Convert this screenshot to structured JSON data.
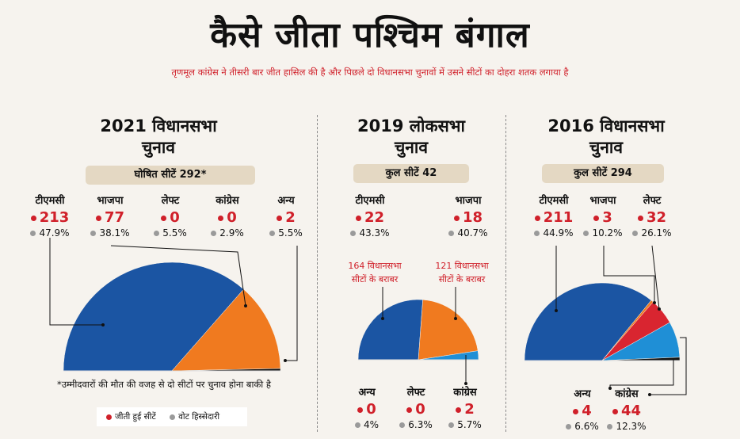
{
  "title": "कैसे जीता पश्चिम बंगाल",
  "subtitle": "तृणमूल कांग्रेस ने तीसरी बार जीत हासिल की है और पिछले दो विधानसभा चुनावों में उसने सीटों का दोहरा शतक लगाया है",
  "colors": {
    "tmc": "#1b55a3",
    "bjp": "#f07a1f",
    "left": "#d92530",
    "congress": "#1f8fd6",
    "others": "#111111"
  },
  "footnote": "*उम्मीदवारों की मौत की वजह से दो सीटों पर चुनाव होना बाकी है",
  "legend": {
    "won": "जीती हुई सीटें",
    "vote": "वोट हिस्सेदारी"
  },
  "panels": [
    {
      "title_line1": "2021 विधानसभा",
      "title_line2": "चुनाव",
      "pill": "घोषित सीटें 292*",
      "parties": [
        {
          "name": "टीएमसी",
          "seats": "213",
          "vote": "47.9%"
        },
        {
          "name": "भाजपा",
          "seats": "77",
          "vote": "38.1%"
        },
        {
          "name": "लेफ्ट",
          "seats": "0",
          "vote": "5.5%"
        },
        {
          "name": "कांग्रेस",
          "seats": "0",
          "vote": "2.9%"
        },
        {
          "name": "अन्य",
          "seats": "2",
          "vote": "5.5%"
        }
      ]
    },
    {
      "title_line1": "2019 लोकसभा",
      "title_line2": "चुनाव",
      "pill": "कुल सीटें 42",
      "parties": [
        {
          "name": "टीएमसी",
          "seats": "22",
          "vote": "43.3%"
        },
        {
          "name": "भाजपा",
          "seats": "18",
          "vote": "40.7%"
        },
        {
          "name": "अन्य",
          "seats": "0",
          "vote": "4%"
        },
        {
          "name": "लेफ्ट",
          "seats": "0",
          "vote": "6.3%"
        },
        {
          "name": "कांग्रेस",
          "seats": "2",
          "vote": "5.7%"
        }
      ],
      "note_tmc": [
        "164 विधानसभा",
        "सीटों के बराबर"
      ],
      "note_bjp": [
        "121 विधानसभा",
        "सीटों के बराबर"
      ]
    },
    {
      "title_line1": "2016 विधानसभा",
      "title_line2": "चुनाव",
      "pill": "कुल सीटें 294",
      "parties": [
        {
          "name": "टीएमसी",
          "seats": "211",
          "vote": "44.9%"
        },
        {
          "name": "भाजपा",
          "seats": "3",
          "vote": "10.2%"
        },
        {
          "name": "लेफ्ट",
          "seats": "32",
          "vote": "26.1%"
        },
        {
          "name": "अन्य",
          "seats": "4",
          "vote": "6.6%"
        },
        {
          "name": "कांग्रेस",
          "seats": "44",
          "vote": "12.3%"
        }
      ]
    }
  ],
  "chart_data": [
    {
      "type": "pie",
      "shape": "semicircle",
      "categories": [
        "टीएमसी",
        "भाजपा",
        "लेफ्ट",
        "कांग्रेस",
        "अन्य"
      ],
      "values": [
        213,
        77,
        0,
        0,
        2
      ],
      "total": 292
    },
    {
      "type": "pie",
      "shape": "semicircle",
      "categories": [
        "टीएमसी",
        "भाजपा",
        "अन्य",
        "लेफ्ट",
        "कांग्रेस"
      ],
      "values": [
        22,
        18,
        0,
        0,
        2
      ],
      "total": 42
    },
    {
      "type": "pie",
      "shape": "semicircle",
      "categories": [
        "टीएमसी",
        "भाजपा",
        "लेफ्ट",
        "अन्य",
        "कांग्रेस"
      ],
      "values": [
        211,
        3,
        32,
        4,
        44
      ],
      "total": 294
    }
  ]
}
